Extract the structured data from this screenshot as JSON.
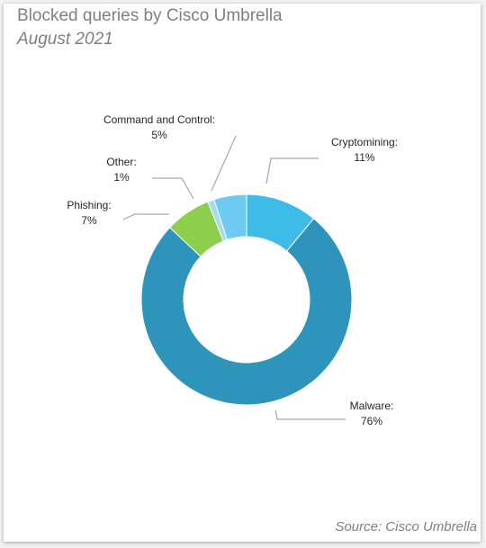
{
  "chart_data": {
    "type": "pie",
    "donut": true,
    "title": "Blocked queries by Cisco Umbrella",
    "subtitle": "August 2021",
    "source": "Source: Cisco Umbrella",
    "slices": [
      {
        "name": "Cryptomining",
        "value": 11,
        "label": "11%",
        "color": "#3fbbe8"
      },
      {
        "name": "Malware",
        "value": 76,
        "label": "76%",
        "color": "#2e94bb"
      },
      {
        "name": "Phishing",
        "value": 7,
        "label": "7%",
        "color": "#8ccf4d"
      },
      {
        "name": "Other",
        "value": 1,
        "label": "1%",
        "color": "#a6dcf2"
      },
      {
        "name": "Command and Control",
        "value": 5,
        "label": "5%",
        "color": "#6ecaf0"
      }
    ],
    "data_label_names": {
      "cryptomining": "Cryptomining:",
      "malware": "Malware:",
      "phishing": "Phishing:",
      "other": "Other:",
      "command_and_control": "Command and Control:"
    },
    "legend": "none"
  }
}
